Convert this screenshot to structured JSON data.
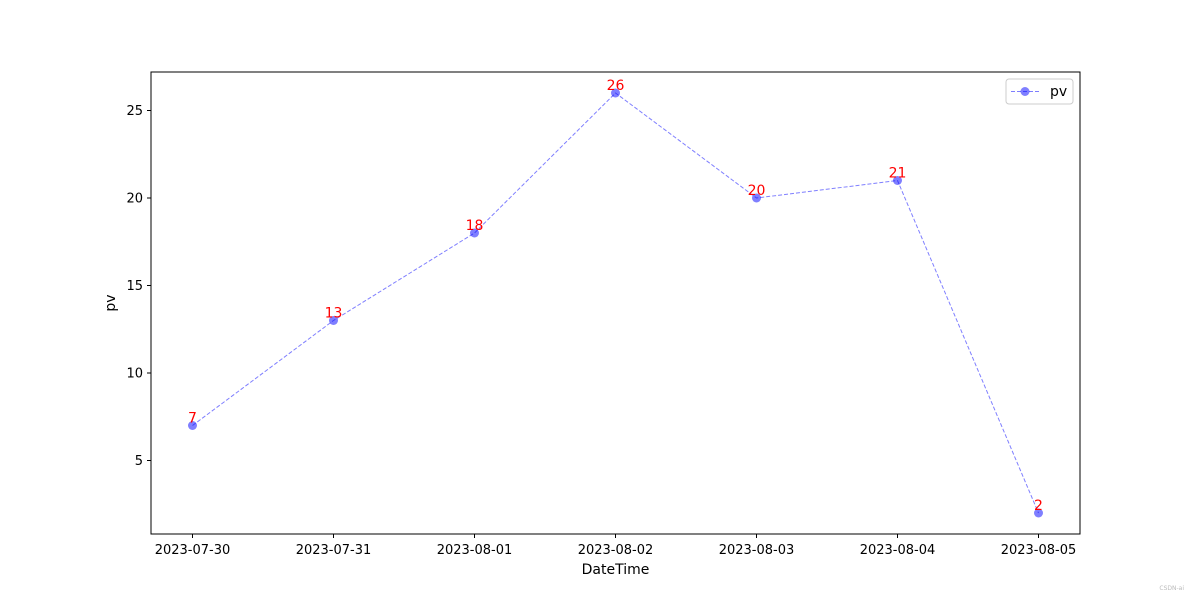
{
  "chart_data": {
    "type": "line",
    "title": "",
    "xlabel": "DateTime",
    "ylabel": "pv",
    "categories": [
      "2023-07-30",
      "2023-07-31",
      "2023-08-01",
      "2023-08-02",
      "2023-08-03",
      "2023-08-04",
      "2023-08-05"
    ],
    "series": [
      {
        "name": "pv",
        "values": [
          7,
          13,
          18,
          26,
          20,
          21,
          2
        ],
        "color": "#0000ff",
        "label_color": "#ff0000",
        "line_style": "dashed",
        "marker": "circle"
      }
    ],
    "ylim": [
      0.8,
      27.2
    ],
    "yticks": [
      5,
      10,
      15,
      20,
      25
    ],
    "grid": false,
    "legend_position": "top-right"
  },
  "watermark": "CSDN-ai"
}
